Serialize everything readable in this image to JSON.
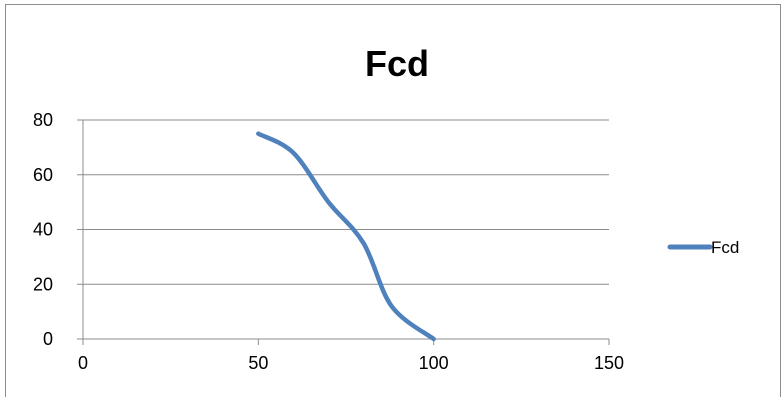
{
  "chart_data": {
    "type": "scatter",
    "title": "Fcd",
    "xlabel": "",
    "ylabel": "",
    "xlim": [
      0,
      150
    ],
    "ylim": [
      0,
      80
    ],
    "xticks": [
      0,
      50,
      100,
      150
    ],
    "yticks": [
      0,
      20,
      40,
      60,
      80
    ],
    "grid": "horizontal",
    "legend_position": "right",
    "series": [
      {
        "name": "Fcd",
        "color": "#4f81bd",
        "smooth": true,
        "points": [
          {
            "x": 50,
            "y": 75
          },
          {
            "x": 60,
            "y": 68
          },
          {
            "x": 70,
            "y": 50
          },
          {
            "x": 80,
            "y": 35
          },
          {
            "x": 88,
            "y": 12
          },
          {
            "x": 100,
            "y": 0
          }
        ]
      }
    ]
  }
}
